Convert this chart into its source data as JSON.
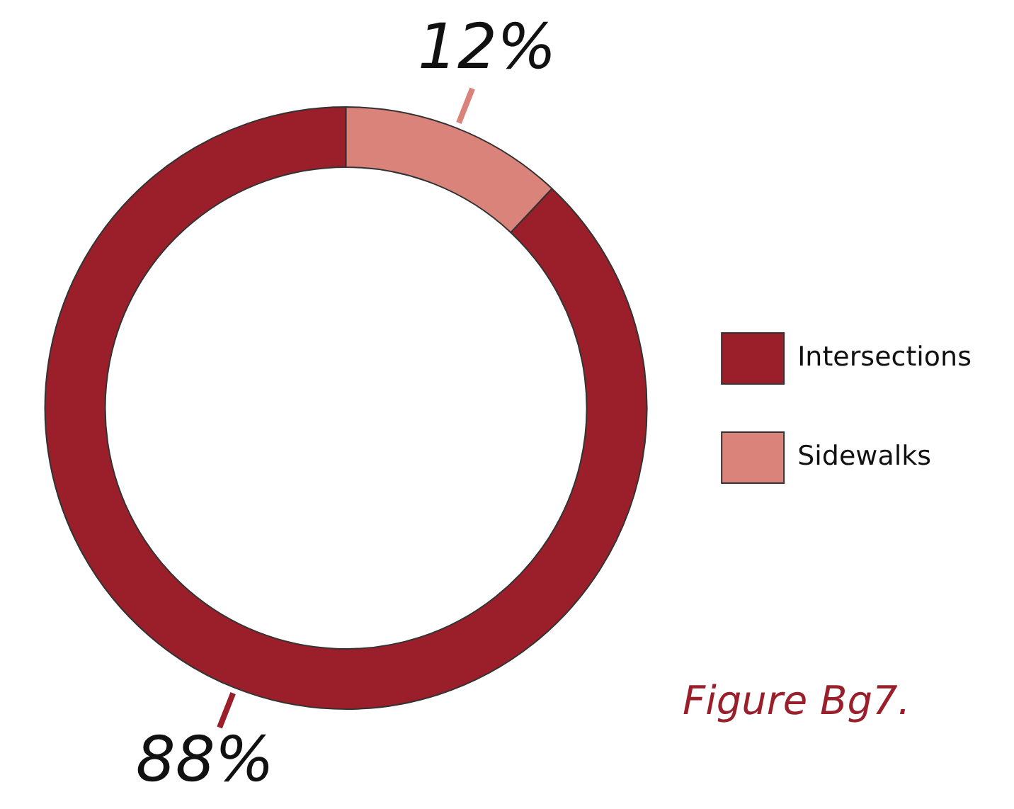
{
  "chart_data": {
    "type": "donut",
    "categories": [
      "Intersections",
      "Sidewalks"
    ],
    "values": [
      88,
      12
    ],
    "colors": [
      "#9b1f2a",
      "#d9837a"
    ],
    "value_labels": [
      "88%",
      "12%"
    ],
    "legend": "right",
    "annotations": [
      "Figure Bg7."
    ]
  }
}
